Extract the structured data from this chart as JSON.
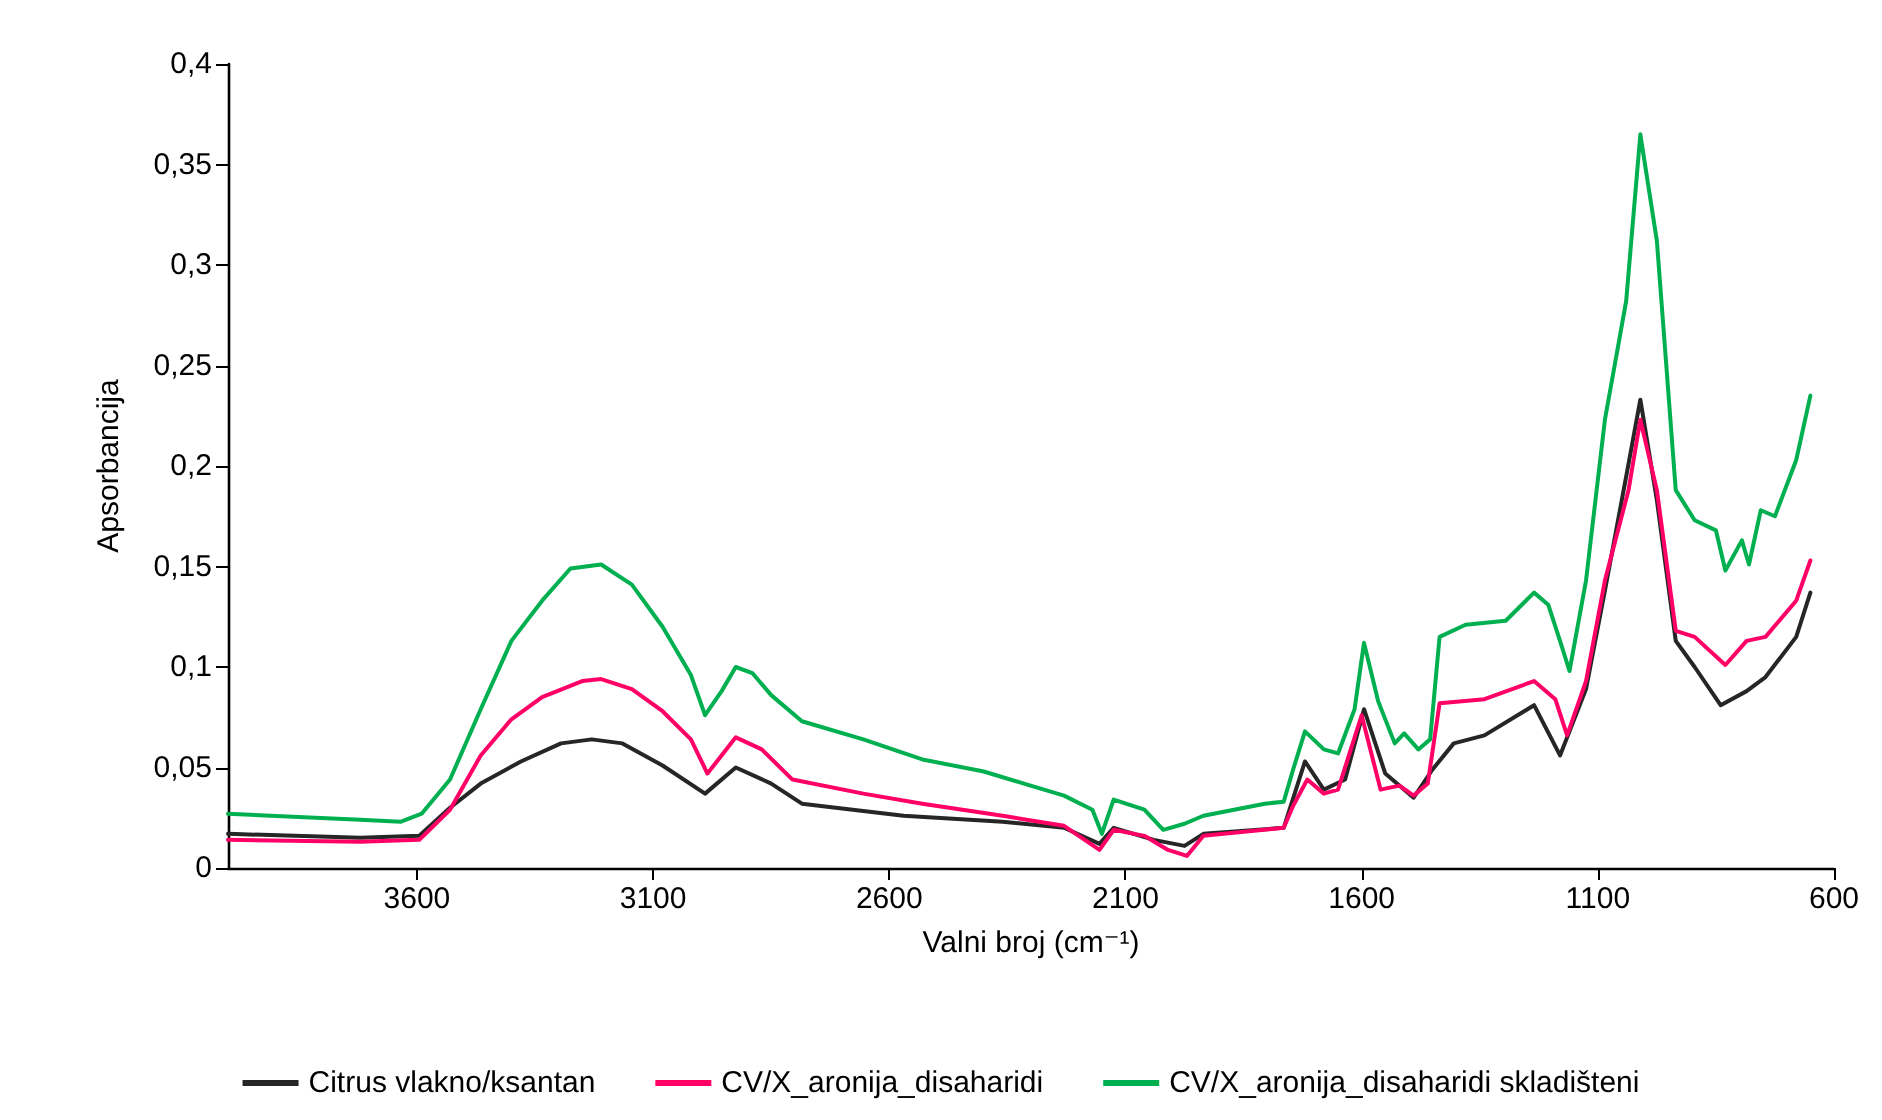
{
  "chart_data": {
    "type": "line",
    "xlabel": "Valni broj (cm⁻¹)",
    "ylabel": "Apsorbancija",
    "xlim": [
      4000,
      600
    ],
    "xticks": [
      3600,
      3100,
      2600,
      2100,
      1600,
      1100,
      600
    ],
    "ylim": [
      0,
      0.4
    ],
    "yticks": [
      {
        "value": 0,
        "label": "0"
      },
      {
        "value": 0.05,
        "label": "0,05"
      },
      {
        "value": 0.1,
        "label": "0,1"
      },
      {
        "value": 0.15,
        "label": "0,15"
      },
      {
        "value": 0.2,
        "label": "0,2"
      },
      {
        "value": 0.25,
        "label": "0,25"
      },
      {
        "value": 0.3,
        "label": "0,3"
      },
      {
        "value": 0.35,
        "label": "0,35"
      },
      {
        "value": 0.4,
        "label": "0,4"
      }
    ],
    "grid": false,
    "legend": "bottom",
    "marker": "none",
    "line_style": "solid",
    "series": [
      {
        "name": "Citrus vlakno/ksantan",
        "color": "#262626",
        "x": [
          4000,
          3720,
          3595,
          3530,
          3465,
          3380,
          3295,
          3230,
          3165,
          3080,
          2990,
          2925,
          2850,
          2785,
          2570,
          2360,
          2230,
          2155,
          2125,
          2040,
          1975,
          1935,
          1765,
          1720,
          1680,
          1635,
          1595,
          1550,
          1490,
          1450,
          1405,
          1340,
          1235,
          1180,
          1125,
          1085,
          1035,
          1010,
          975,
          935,
          895,
          840,
          785,
          745,
          680,
          650
        ],
        "values": [
          0.017,
          0.015,
          0.016,
          0.03,
          0.042,
          0.053,
          0.062,
          0.064,
          0.062,
          0.051,
          0.037,
          0.05,
          0.042,
          0.032,
          0.026,
          0.023,
          0.02,
          0.012,
          0.02,
          0.014,
          0.011,
          0.017,
          0.02,
          0.053,
          0.039,
          0.044,
          0.079,
          0.047,
          0.035,
          0.049,
          0.062,
          0.066,
          0.081,
          0.056,
          0.089,
          0.138,
          0.201,
          0.233,
          0.183,
          0.113,
          0.1,
          0.081,
          0.088,
          0.095,
          0.115,
          0.137
        ]
      },
      {
        "name": "CV/X_aronija_disaharidi",
        "color": "#ff0066",
        "x": [
          4000,
          3720,
          3595,
          3530,
          3465,
          3400,
          3335,
          3250,
          3210,
          3145,
          3080,
          3020,
          2985,
          2925,
          2870,
          2805,
          2655,
          2530,
          2360,
          2230,
          2155,
          2125,
          2060,
          2010,
          1970,
          1935,
          1765,
          1745,
          1715,
          1680,
          1650,
          1600,
          1560,
          1520,
          1490,
          1460,
          1435,
          1340,
          1235,
          1190,
          1165,
          1125,
          1085,
          1035,
          1010,
          975,
          935,
          895,
          830,
          785,
          745,
          680,
          650
        ],
        "values": [
          0.014,
          0.013,
          0.014,
          0.029,
          0.056,
          0.074,
          0.085,
          0.093,
          0.094,
          0.089,
          0.078,
          0.064,
          0.047,
          0.065,
          0.059,
          0.044,
          0.037,
          0.032,
          0.026,
          0.021,
          0.009,
          0.019,
          0.016,
          0.009,
          0.006,
          0.016,
          0.02,
          0.031,
          0.044,
          0.037,
          0.039,
          0.076,
          0.039,
          0.041,
          0.036,
          0.042,
          0.082,
          0.084,
          0.093,
          0.084,
          0.066,
          0.093,
          0.143,
          0.188,
          0.223,
          0.188,
          0.118,
          0.115,
          0.101,
          0.113,
          0.115,
          0.133,
          0.153
        ]
      },
      {
        "name": "CV/X_aronija_disaharidi skladišteni",
        "color": "#00b050",
        "x": [
          4000,
          3720,
          3635,
          3590,
          3530,
          3465,
          3400,
          3335,
          3275,
          3210,
          3145,
          3080,
          3020,
          2990,
          2955,
          2925,
          2890,
          2850,
          2785,
          2655,
          2530,
          2400,
          2315,
          2230,
          2170,
          2150,
          2125,
          2060,
          2020,
          1975,
          1935,
          1805,
          1765,
          1745,
          1720,
          1680,
          1650,
          1615,
          1595,
          1565,
          1530,
          1510,
          1480,
          1455,
          1435,
          1380,
          1295,
          1235,
          1205,
          1180,
          1160,
          1125,
          1085,
          1040,
          1010,
          975,
          935,
          895,
          850,
          830,
          795,
          780,
          755,
          725,
          680,
          650
        ],
        "values": [
          0.027,
          0.024,
          0.023,
          0.027,
          0.044,
          0.079,
          0.113,
          0.133,
          0.149,
          0.151,
          0.141,
          0.12,
          0.096,
          0.076,
          0.088,
          0.1,
          0.097,
          0.086,
          0.073,
          0.064,
          0.054,
          0.048,
          0.042,
          0.036,
          0.029,
          0.017,
          0.034,
          0.029,
          0.019,
          0.022,
          0.026,
          0.032,
          0.033,
          0.049,
          0.068,
          0.059,
          0.057,
          0.079,
          0.112,
          0.083,
          0.062,
          0.067,
          0.059,
          0.064,
          0.115,
          0.121,
          0.123,
          0.137,
          0.131,
          0.113,
          0.098,
          0.143,
          0.223,
          0.282,
          0.365,
          0.312,
          0.188,
          0.173,
          0.168,
          0.148,
          0.163,
          0.151,
          0.178,
          0.175,
          0.203,
          0.235
        ]
      }
    ]
  }
}
